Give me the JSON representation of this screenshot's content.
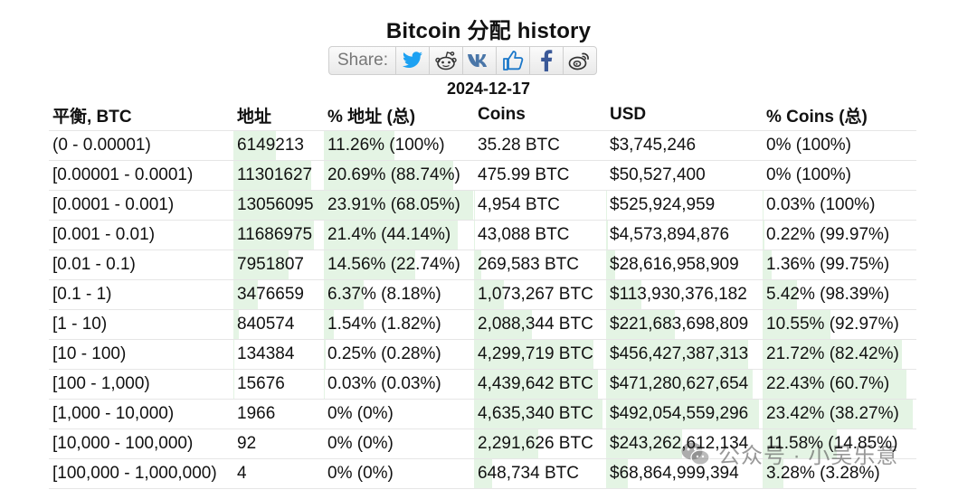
{
  "title": "Bitcoin 分配 history",
  "share": {
    "label": "Share:",
    "buttons": [
      {
        "name": "twitter-icon",
        "color": "#1da1f2"
      },
      {
        "name": "reddit-icon",
        "color": "#333333"
      },
      {
        "name": "vk-icon",
        "color": "#4a76a8"
      },
      {
        "name": "thumbs-up-icon",
        "color": "#1a77c9"
      },
      {
        "name": "facebook-icon",
        "color": "#3b5998"
      },
      {
        "name": "weibo-icon",
        "color": "#333333"
      }
    ]
  },
  "date": "2024-12-17",
  "headers": [
    "平衡, BTC",
    "地址",
    "% 地址 (总)",
    "Coins",
    "USD",
    "% Coins (总)"
  ],
  "rows": [
    {
      "range": "(0 - 0.00001)",
      "addresses": "6149213",
      "addr_pct": "11.26% (100%)",
      "coins": "35.28 BTC",
      "usd": "$3,745,246",
      "coins_pct": "0% (100%)",
      "addr_share": 0.1126,
      "coin_share": 0.0
    },
    {
      "range": "[0.00001 - 0.0001)",
      "addresses": "11301627",
      "addr_pct": "20.69% (88.74%)",
      "coins": "475.99 BTC",
      "usd": "$50,527,400",
      "coins_pct": "0% (100%)",
      "addr_share": 0.2069,
      "coin_share": 0.0
    },
    {
      "range": "[0.0001 - 0.001)",
      "addresses": "13056095",
      "addr_pct": "23.91% (68.05%)",
      "coins": "4,954 BTC",
      "usd": "$525,924,959",
      "coins_pct": "0.03% (100%)",
      "addr_share": 0.2391,
      "coin_share": 0.0003
    },
    {
      "range": "[0.001 - 0.01)",
      "addresses": "11686975",
      "addr_pct": "21.4% (44.14%)",
      "coins": "43,088 BTC",
      "usd": "$4,573,894,876",
      "coins_pct": "0.22% (99.97%)",
      "addr_share": 0.214,
      "coin_share": 0.0022
    },
    {
      "range": "[0.01 - 0.1)",
      "addresses": "7951807",
      "addr_pct": "14.56% (22.74%)",
      "coins": "269,583 BTC",
      "usd": "$28,616,958,909",
      "coins_pct": "1.36% (99.75%)",
      "addr_share": 0.1456,
      "coin_share": 0.0136
    },
    {
      "range": "[0.1 - 1)",
      "addresses": "3476659",
      "addr_pct": "6.37% (8.18%)",
      "coins": "1,073,267 BTC",
      "usd": "$113,930,376,182",
      "coins_pct": "5.42% (98.39%)",
      "addr_share": 0.0637,
      "coin_share": 0.0542
    },
    {
      "range": "[1 - 10)",
      "addresses": "840574",
      "addr_pct": "1.54% (1.82%)",
      "coins": "2,088,344 BTC",
      "usd": "$221,683,698,809",
      "coins_pct": "10.55% (92.97%)",
      "addr_share": 0.0154,
      "coin_share": 0.1055
    },
    {
      "range": "[10 - 100)",
      "addresses": "134384",
      "addr_pct": "0.25% (0.28%)",
      "coins": "4,299,719 BTC",
      "usd": "$456,427,387,313",
      "coins_pct": "21.72% (82.42%)",
      "addr_share": 0.0025,
      "coin_share": 0.2172
    },
    {
      "range": "[100 - 1,000)",
      "addresses": "15676",
      "addr_pct": "0.03% (0.03%)",
      "coins": "4,439,642 BTC",
      "usd": "$471,280,627,654",
      "coins_pct": "22.43% (60.7%)",
      "addr_share": 0.0003,
      "coin_share": 0.2243
    },
    {
      "range": "[1,000 - 10,000)",
      "addresses": "1966",
      "addr_pct": "0% (0%)",
      "coins": "4,635,340 BTC",
      "usd": "$492,054,559,296",
      "coins_pct": "23.42% (38.27%)",
      "addr_share": 0.0,
      "coin_share": 0.2342
    },
    {
      "range": "[10,000 - 100,000)",
      "addresses": "92",
      "addr_pct": "0% (0%)",
      "coins": "2,291,626 BTC",
      "usd": "$243,262,612,134",
      "coins_pct": "11.58% (14.85%)",
      "addr_share": 0.0,
      "coin_share": 0.1158
    },
    {
      "range": "[100,000 - 1,000,000)",
      "addresses": "4",
      "addr_pct": "0% (0%)",
      "coins": "648,734 BTC",
      "usd": "$68,864,999,394",
      "coins_pct": "3.28% (3.28%)",
      "addr_share": 0.0,
      "coin_share": 0.0328
    }
  ],
  "colors": {
    "bar_fill": "#e4f4e4",
    "row_border": "#e6e6e6"
  },
  "watermark": "公众号 · 小吴乐意"
}
